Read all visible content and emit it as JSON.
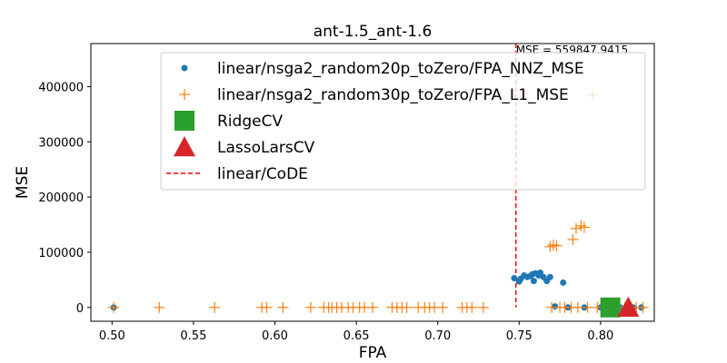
{
  "chart_data": {
    "type": "scatter",
    "title": "ant-1.5_ant-1.6",
    "xlabel": "FPA",
    "ylabel": "MSE",
    "xlim": [
      0.487,
      0.833
    ],
    "ylim": [
      -25000,
      478000
    ],
    "xticks": [
      0.5,
      0.55,
      0.6,
      0.65,
      0.7,
      0.75,
      0.8
    ],
    "yticks": [
      0,
      100000,
      200000,
      300000,
      400000
    ],
    "xtick_labels": [
      "0.50",
      "0.55",
      "0.60",
      "0.65",
      "0.70",
      "0.75",
      "0.80"
    ],
    "ytick_labels": [
      "0",
      "100000",
      "200000",
      "300000",
      "400000"
    ],
    "legend_position": "top-right",
    "series": [
      {
        "name": "linear/nsga2_random20p_toZero/FPA_NNZ_MSE",
        "marker": "dot",
        "color": "#1f77b4",
        "points": [
          [
            0.501,
            0
          ],
          [
            0.747,
            53000
          ],
          [
            0.75,
            47000
          ],
          [
            0.751,
            52000
          ],
          [
            0.753,
            58000
          ],
          [
            0.755,
            55000
          ],
          [
            0.757,
            57000
          ],
          [
            0.758,
            60000
          ],
          [
            0.76,
            62000
          ],
          [
            0.759,
            48000
          ],
          [
            0.762,
            58000
          ],
          [
            0.763,
            63000
          ],
          [
            0.765,
            55000
          ],
          [
            0.767,
            48000
          ],
          [
            0.769,
            55000
          ],
          [
            0.772,
            2000
          ],
          [
            0.777,
            45000
          ],
          [
            0.78,
            0
          ],
          [
            0.79,
            0
          ],
          [
            0.8,
            0
          ],
          [
            0.812,
            0
          ],
          [
            0.82,
            0
          ],
          [
            0.825,
            0
          ]
        ]
      },
      {
        "name": "linear/nsga2_random30p_toZero/FPA_L1_MSE",
        "marker": "plus",
        "color": "#ff7f0e",
        "points": [
          [
            0.501,
            0
          ],
          [
            0.529,
            0
          ],
          [
            0.563,
            0
          ],
          [
            0.592,
            0
          ],
          [
            0.595,
            0
          ],
          [
            0.605,
            0
          ],
          [
            0.622,
            0
          ],
          [
            0.63,
            0
          ],
          [
            0.633,
            0
          ],
          [
            0.635,
            0
          ],
          [
            0.638,
            0
          ],
          [
            0.641,
            0
          ],
          [
            0.645,
            0
          ],
          [
            0.648,
            0
          ],
          [
            0.652,
            0
          ],
          [
            0.655,
            0
          ],
          [
            0.66,
            0
          ],
          [
            0.672,
            0
          ],
          [
            0.675,
            0
          ],
          [
            0.678,
            0
          ],
          [
            0.681,
            0
          ],
          [
            0.688,
            0
          ],
          [
            0.692,
            0
          ],
          [
            0.695,
            0
          ],
          [
            0.698,
            0
          ],
          [
            0.703,
            0
          ],
          [
            0.715,
            0
          ],
          [
            0.718,
            0
          ],
          [
            0.721,
            0
          ],
          [
            0.728,
            0
          ],
          [
            0.769,
            110000
          ],
          [
            0.771,
            113000
          ],
          [
            0.773,
            112000
          ],
          [
            0.783,
            123000
          ],
          [
            0.785,
            143000
          ],
          [
            0.788,
            148000
          ],
          [
            0.79,
            145000
          ],
          [
            0.795,
            385000
          ],
          [
            0.77,
            0
          ],
          [
            0.775,
            0
          ],
          [
            0.778,
            0
          ],
          [
            0.782,
            0
          ],
          [
            0.786,
            0
          ],
          [
            0.792,
            0
          ],
          [
            0.798,
            0
          ],
          [
            0.805,
            0
          ],
          [
            0.81,
            0
          ],
          [
            0.815,
            0
          ],
          [
            0.822,
            0
          ],
          [
            0.826,
            0
          ]
        ]
      },
      {
        "name": "RidgeCV",
        "marker": "square",
        "color": "#2ca02c",
        "points": [
          [
            0.806,
            0
          ]
        ]
      },
      {
        "name": "LassoLarsCV",
        "marker": "triangle",
        "color": "#d62728",
        "points": [
          [
            0.817,
            0
          ]
        ]
      },
      {
        "name": "linear/CoDE",
        "marker": "dashed-vline",
        "color": "#ff0000",
        "x": 0.748,
        "y_top_visible": 559847.9415,
        "annotation": "MSE = 559847.9415"
      }
    ]
  }
}
